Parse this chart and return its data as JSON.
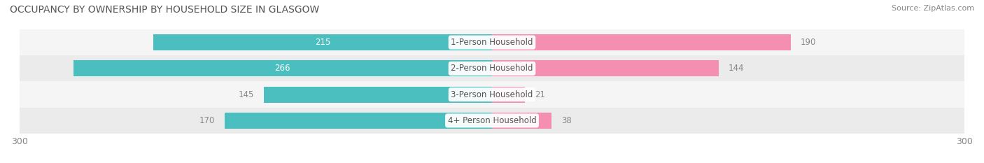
{
  "title": "OCCUPANCY BY OWNERSHIP BY HOUSEHOLD SIZE IN GLASGOW",
  "source": "Source: ZipAtlas.com",
  "categories": [
    "1-Person Household",
    "2-Person Household",
    "3-Person Household",
    "4+ Person Household"
  ],
  "owner_values": [
    215,
    266,
    145,
    170
  ],
  "renter_values": [
    190,
    144,
    21,
    38
  ],
  "owner_color": "#4BBFBF",
  "renter_color": "#F48FB1",
  "row_bg_colors": [
    "#F5F5F5",
    "#EBEBEB"
  ],
  "xlim": 300,
  "title_fontsize": 10,
  "source_fontsize": 8,
  "tick_fontsize": 9,
  "label_fontsize": 8.5,
  "category_fontsize": 8.5,
  "legend_fontsize": 9,
  "bar_height": 0.62,
  "background_color": "#FFFFFF",
  "inside_label_threshold": 180,
  "text_inside_color": "#FFFFFF",
  "text_outside_color": "#888888",
  "category_text_color": "#555555",
  "title_color": "#555555",
  "source_color": "#888888"
}
